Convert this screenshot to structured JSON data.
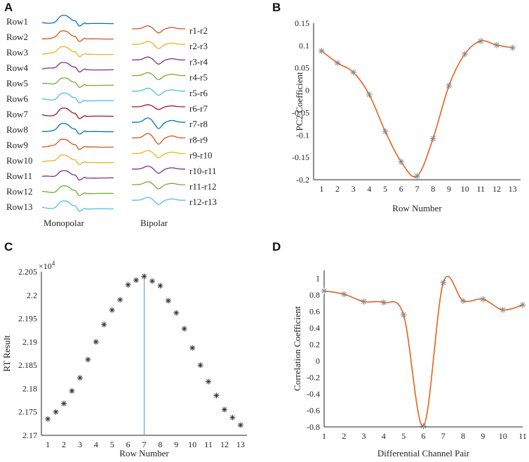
{
  "panels": {
    "A": {
      "label": "A",
      "monopolar_caption": "Monopolar",
      "bipolar_caption": "Bipolar",
      "monopolar_rows": [
        "Row1",
        "Row2",
        "Row3",
        "Row4",
        "Row5",
        "Row6",
        "Row7",
        "Row8",
        "Row9",
        "Row10",
        "Row11",
        "Row12",
        "Row13"
      ],
      "bipolar_rows": [
        "r1-r2",
        "r2-r3",
        "r3-r4",
        "r4-r5",
        "r5-r6",
        "r6-r7",
        "r7-r8",
        "r8-r9",
        "r9-r10",
        "r10-r11",
        "r11-r12",
        "r12-r13"
      ],
      "trace_colors": [
        "#0072BD",
        "#D95319",
        "#EDB120",
        "#7E2F8E",
        "#77AC30",
        "#4DBEEE",
        "#A2142F",
        "#0072BD",
        "#D95319",
        "#EDB120",
        "#7E2F8E",
        "#77AC30",
        "#4DBEEE"
      ]
    },
    "B": {
      "label": "B"
    },
    "C": {
      "label": "C"
    },
    "D": {
      "label": "D"
    }
  },
  "chart_data": [
    {
      "panel": "B",
      "type": "line",
      "xlabel": "Row Number",
      "ylabel": "PC2 Coefficient",
      "x": [
        1,
        2,
        3,
        4,
        5,
        6,
        7,
        8,
        9,
        10,
        11,
        12,
        13
      ],
      "y": [
        0.088,
        0.061,
        0.04,
        -0.01,
        -0.092,
        -0.16,
        -0.192,
        -0.108,
        0.01,
        0.081,
        0.11,
        0.101,
        0.095
      ],
      "xticks": [
        "1",
        "2",
        "3",
        "4",
        "5",
        "6",
        "7",
        "8",
        "9",
        "10",
        "11",
        "12",
        "13"
      ],
      "yticks": [
        "0.15",
        "0.1",
        "0.05",
        "0",
        "-0.05",
        "-0.1",
        "-0.15",
        "-0.2"
      ],
      "xlim": [
        0.5,
        13.5
      ],
      "ylim": [
        -0.2,
        0.15
      ],
      "line_color": "#E8601C",
      "marker_color": "#888888"
    },
    {
      "panel": "C",
      "type": "scatter",
      "xlabel": "Row Number",
      "ylabel": "RT Result",
      "exponent_label": "×10",
      "exponent_power": "4",
      "x": [
        1,
        1.5,
        2,
        2.5,
        3,
        3.5,
        4,
        4.5,
        5,
        5.5,
        6,
        6.5,
        7,
        7.5,
        8,
        8.5,
        9,
        9.5,
        10,
        10.5,
        11,
        11.5,
        12,
        12.5,
        13
      ],
      "y": [
        2.1735,
        2.175,
        2.1768,
        2.1795,
        2.1823,
        2.1862,
        2.19,
        2.1937,
        2.1968,
        2.199,
        2.2022,
        2.2032,
        2.204,
        2.203,
        2.202,
        2.1988,
        2.1962,
        2.1928,
        2.1887,
        2.185,
        2.1815,
        2.1785,
        2.1755,
        2.1738,
        2.1722
      ],
      "peak_line_x": 7,
      "xticks": [
        "1",
        "2",
        "3",
        "4",
        "5",
        "6",
        "7",
        "8",
        "9",
        "10",
        "11",
        "12",
        "13"
      ],
      "yticks": [
        "2.205",
        "2.2",
        "2.195",
        "2.19",
        "2.185",
        "2.18",
        "2.175",
        "2.17"
      ],
      "xlim": [
        0.6,
        13.4
      ],
      "ylim": [
        2.17,
        2.205
      ],
      "marker_color": "#333333",
      "line_color": "#5B9BD5"
    },
    {
      "panel": "D",
      "type": "line",
      "xlabel": "Differential Channel Pair",
      "ylabel": "Correlation Coefficient",
      "x": [
        1,
        2,
        3,
        4,
        5,
        6,
        7,
        8,
        9,
        10,
        11
      ],
      "y": [
        0.85,
        0.81,
        0.72,
        0.71,
        0.56,
        -0.79,
        0.95,
        0.73,
        0.75,
        0.62,
        0.68
      ],
      "xticks": [
        "1",
        "2",
        "3",
        "4",
        "5",
        "6",
        "7",
        "8",
        "9",
        "10",
        "11"
      ],
      "yticks": [
        "1",
        "0.8",
        "0.6",
        "0.4",
        "0.2",
        "0",
        "-0.2",
        "-0.4",
        "-0.6",
        "-0.8"
      ],
      "xlim": [
        1,
        11
      ],
      "ylim": [
        -0.8,
        1.1
      ],
      "line_color": "#E8601C",
      "marker_color": "#888888"
    }
  ]
}
